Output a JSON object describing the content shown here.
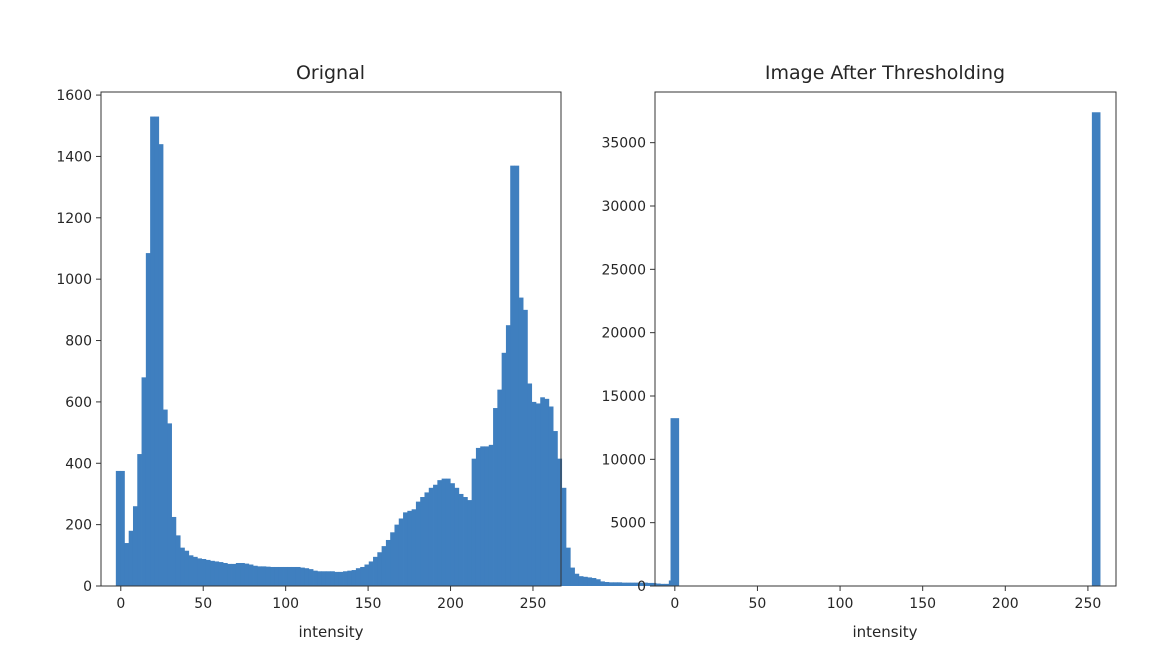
{
  "chart_data": [
    {
      "type": "bar",
      "title": "Orignal",
      "xlabel": "intensity",
      "ylabel": "",
      "xlim": [
        -12,
        267
      ],
      "ylim": [
        0,
        1610
      ],
      "xticks": [
        0,
        50,
        100,
        150,
        200,
        250
      ],
      "yticks": [
        0,
        200,
        400,
        600,
        800,
        1000,
        1200,
        1400,
        1600
      ],
      "bar_color": "#3f7fbf",
      "bin_edges_start": -3,
      "bin_width": 2.6,
      "counts": [
        375,
        375,
        140,
        180,
        260,
        430,
        680,
        1085,
        1530,
        1530,
        1440,
        575,
        530,
        225,
        165,
        125,
        115,
        100,
        95,
        90,
        88,
        85,
        82,
        80,
        78,
        75,
        72,
        72,
        75,
        75,
        73,
        70,
        66,
        64,
        64,
        63,
        62,
        62,
        62,
        62,
        62,
        62,
        62,
        60,
        58,
        55,
        50,
        48,
        48,
        48,
        48,
        46,
        46,
        48,
        50,
        52,
        58,
        62,
        70,
        80,
        95,
        110,
        130,
        150,
        175,
        200,
        220,
        240,
        245,
        250,
        275,
        290,
        305,
        320,
        330,
        345,
        350,
        350,
        335,
        320,
        300,
        290,
        280,
        415,
        450,
        455,
        455,
        460,
        580,
        640,
        760,
        850,
        1370,
        1370,
        940,
        900,
        660,
        600,
        595,
        615,
        610,
        585,
        505,
        415,
        320,
        125,
        60,
        40,
        32,
        30,
        28,
        26,
        22,
        15,
        13,
        12,
        12,
        12,
        11,
        11,
        11,
        11,
        11,
        11,
        10,
        10,
        8,
        7,
        7,
        18,
        18
      ]
    },
    {
      "type": "bar",
      "title": "Image After Thresholding",
      "xlabel": "intensity",
      "ylabel": "",
      "xlim": [
        -12,
        267
      ],
      "ylim": [
        0,
        39000
      ],
      "xticks": [
        0,
        50,
        100,
        150,
        200,
        250
      ],
      "yticks": [
        0,
        5000,
        10000,
        15000,
        20000,
        25000,
        30000,
        35000
      ],
      "bar_color": "#3f7fbf",
      "bars": [
        {
          "x": 0,
          "value": 13250
        },
        {
          "x": 255,
          "value": 37400
        }
      ]
    }
  ]
}
